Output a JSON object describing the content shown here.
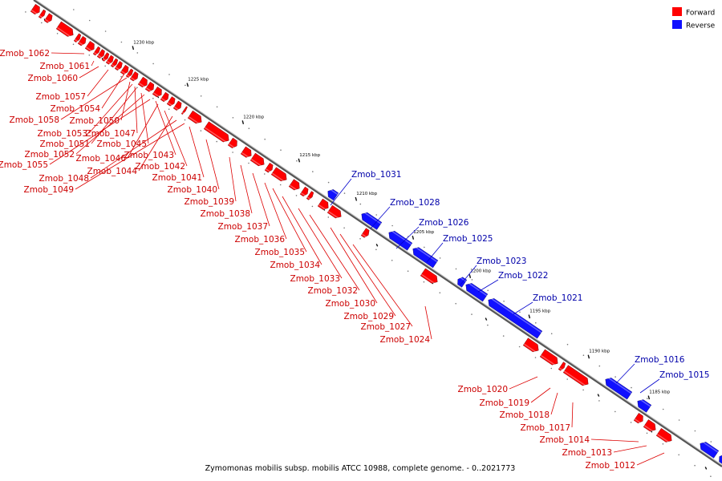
{
  "legend": {
    "forward_label": "Forward",
    "reverse_label": "Reverse",
    "forward_color": "#ff0000",
    "reverse_color": "#1010ff"
  },
  "footer": "Zymomonas mobilis subsp. mobilis ATCC 10988, complete genome. - 0..2021773",
  "ticks": [
    "1230 kbp",
    "1225 kbp",
    "1220 kbp",
    "1215 kbp",
    "1210 kbp",
    "1205 kbp",
    "1200 kbp",
    "1195 kbp",
    "1190 kbp",
    "1185 kbp"
  ],
  "forward_genes": [
    "Zmob_1062",
    "Zmob_1061",
    "Zmob_1060",
    "Zmob_1057",
    "Zmob_1054",
    "Zmob_1058",
    "Zmob_1050",
    "Zmob_1053",
    "Zmob_1047",
    "Zmob_1051",
    "Zmob_1045",
    "Zmob_1052",
    "Zmob_1043",
    "Zmob_1055",
    "Zmob_1046",
    "Zmob_1042",
    "Zmob_1044",
    "Zmob_1048",
    "Zmob_1041",
    "Zmob_1049",
    "Zmob_1040",
    "Zmob_1039",
    "Zmob_1038",
    "Zmob_1037",
    "Zmob_1036",
    "Zmob_1035",
    "Zmob_1034",
    "Zmob_1033",
    "Zmob_1032",
    "Zmob_1030",
    "Zmob_1029",
    "Zmob_1027",
    "Zmob_1024",
    "Zmob_1020",
    "Zmob_1019",
    "Zmob_1018",
    "Zmob_1017",
    "Zmob_1014",
    "Zmob_1013",
    "Zmob_1012"
  ],
  "reverse_genes": [
    "Zmob_1031",
    "Zmob_1028",
    "Zmob_1026",
    "Zmob_1025",
    "Zmob_1023",
    "Zmob_1022",
    "Zmob_1021",
    "Zmob_1016",
    "Zmob_1015"
  ]
}
